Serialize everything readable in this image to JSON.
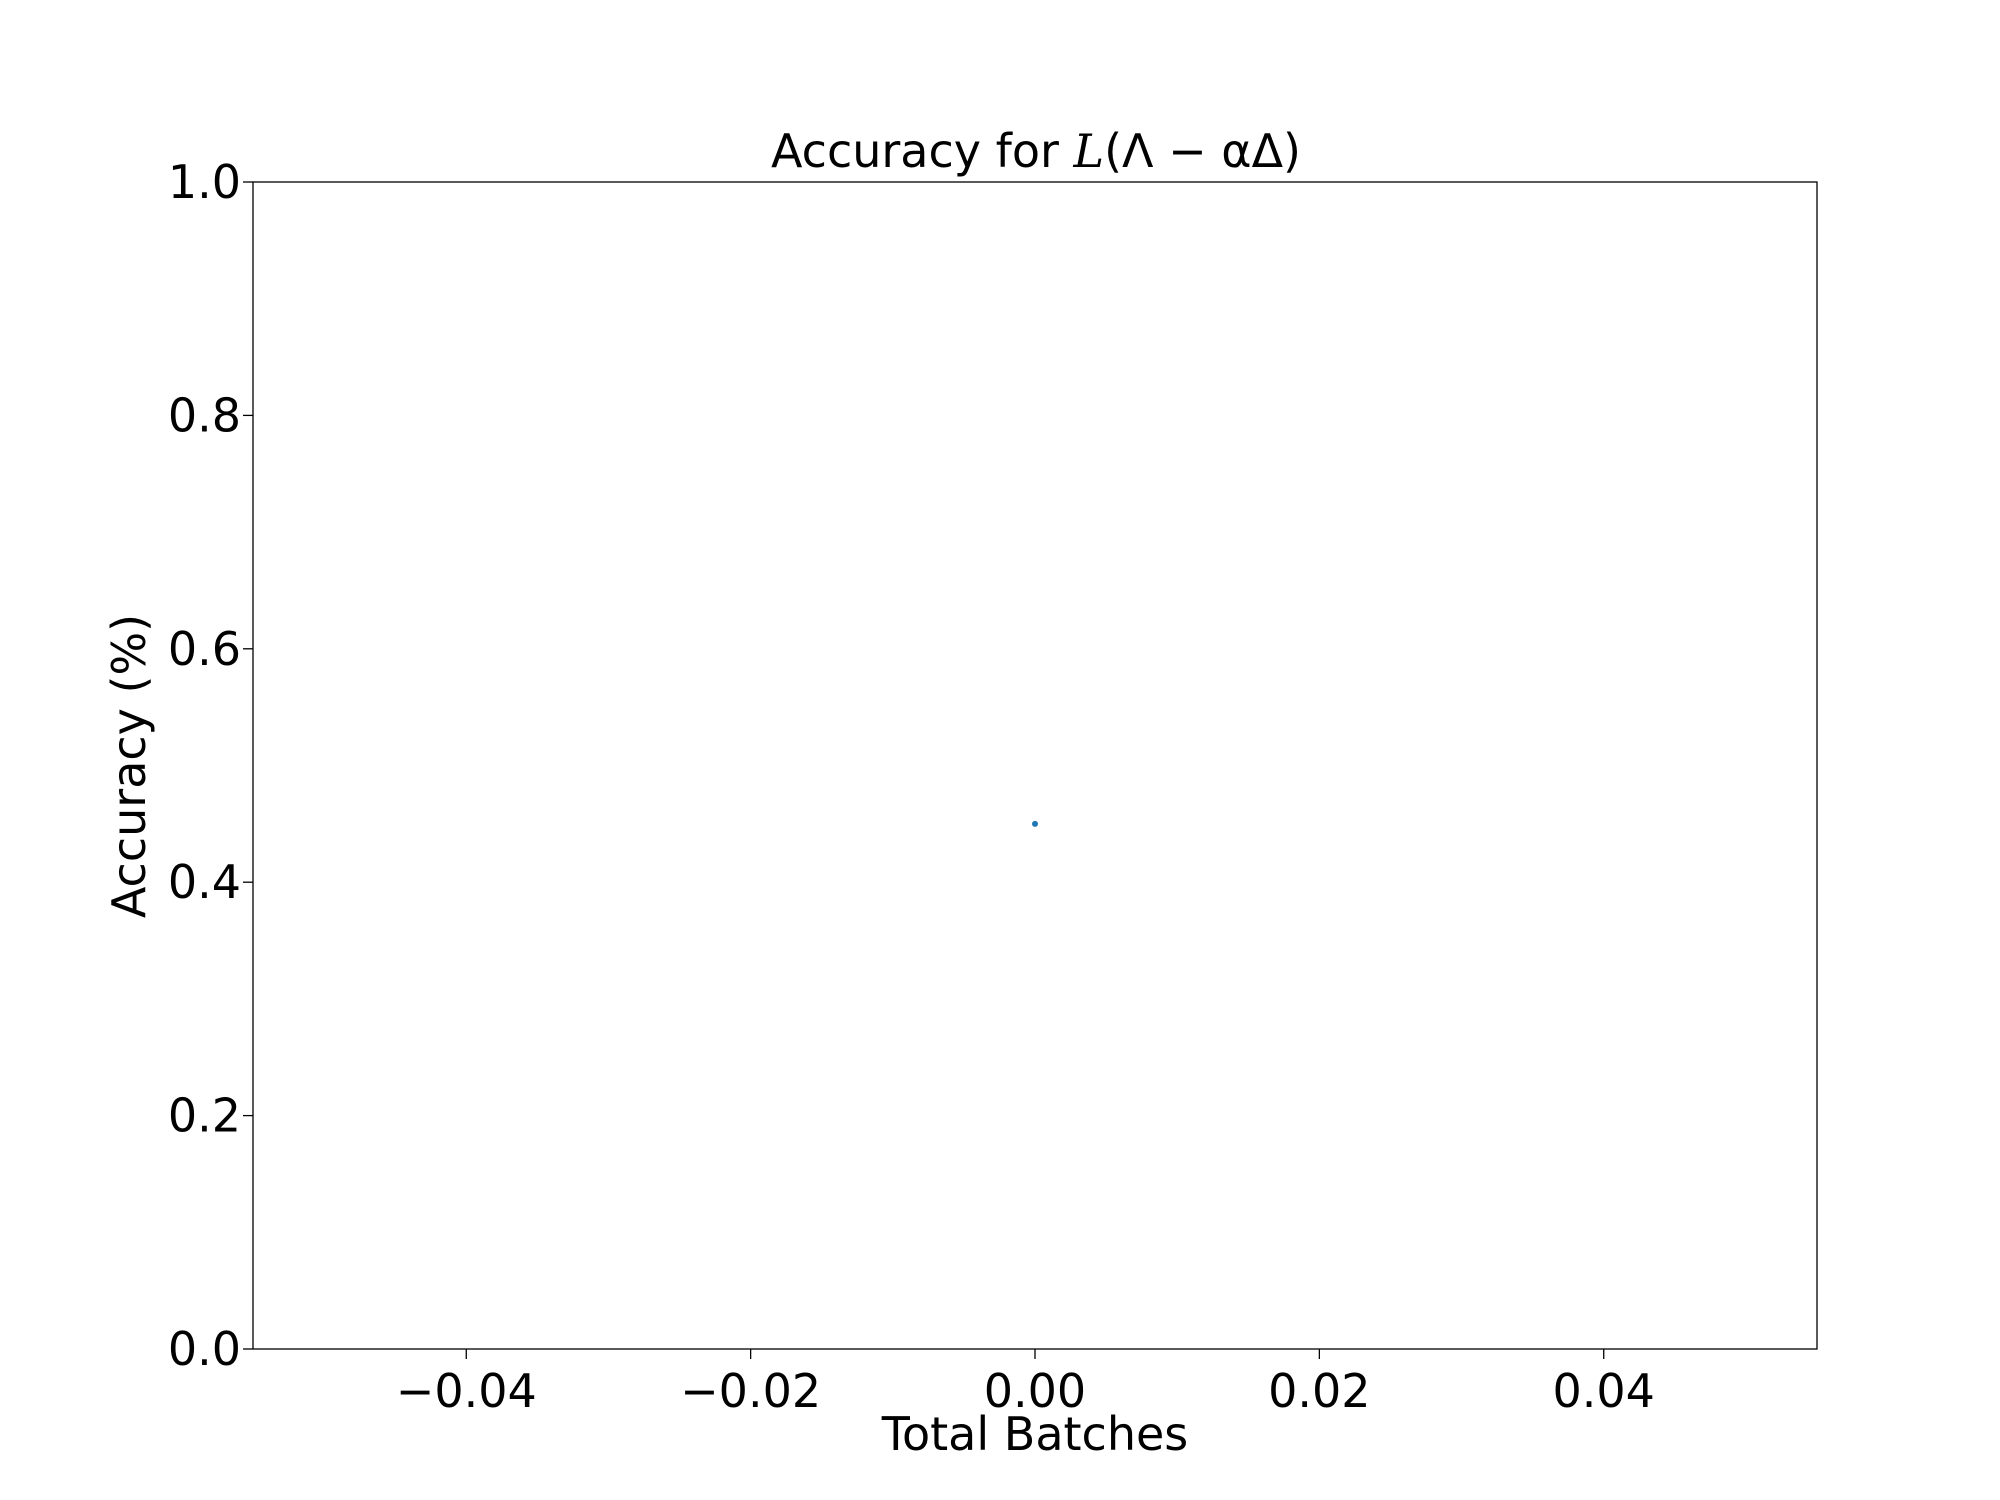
{
  "chart_data": {
    "type": "scatter",
    "title_prefix": "Accuracy for ",
    "title_math": "L",
    "title_math_rest": "(Λ − αΔ)",
    "xlabel": "Total Batches",
    "ylabel": "Accuracy (%)",
    "xlim": [
      -0.055,
      0.055
    ],
    "ylim": [
      0.0,
      1.0
    ],
    "xticks": [
      {
        "value": -0.04,
        "label": "−0.04"
      },
      {
        "value": -0.02,
        "label": "−0.02"
      },
      {
        "value": 0.0,
        "label": "0.00"
      },
      {
        "value": 0.02,
        "label": "0.02"
      },
      {
        "value": 0.04,
        "label": "0.04"
      }
    ],
    "yticks": [
      {
        "value": 0.0,
        "label": "0.0"
      },
      {
        "value": 0.2,
        "label": "0.2"
      },
      {
        "value": 0.4,
        "label": "0.4"
      },
      {
        "value": 0.6,
        "label": "0.6"
      },
      {
        "value": 0.8,
        "label": "0.8"
      },
      {
        "value": 1.0,
        "label": "1.0"
      }
    ],
    "series": [
      {
        "color": "#1f77b4",
        "points": [
          {
            "x": 0.0,
            "y": 0.45
          }
        ]
      }
    ],
    "grid": false,
    "legend": "none"
  }
}
